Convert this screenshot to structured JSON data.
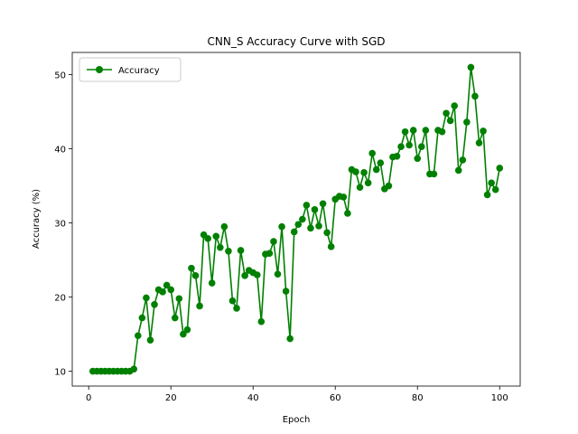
{
  "chart_data": {
    "type": "line",
    "title": "CNN_S Accuracy Curve with SGD",
    "xlabel": "Epoch",
    "ylabel": "Accuracy (%)",
    "xlim": [
      -4,
      105
    ],
    "ylim": [
      8.0,
      53.0
    ],
    "xticks": [
      0,
      20,
      40,
      60,
      80,
      100
    ],
    "yticks": [
      10,
      20,
      30,
      40,
      50
    ],
    "grid": false,
    "legend_position": "upper-left",
    "color": "#008000",
    "marker": "circle",
    "series": [
      {
        "name": "Accuracy",
        "x": [
          1,
          2,
          3,
          4,
          5,
          6,
          7,
          8,
          9,
          10,
          11,
          12,
          13,
          14,
          15,
          16,
          17,
          18,
          19,
          20,
          21,
          22,
          23,
          24,
          25,
          26,
          27,
          28,
          29,
          30,
          31,
          32,
          33,
          34,
          35,
          36,
          37,
          38,
          39,
          40,
          41,
          42,
          43,
          44,
          45,
          46,
          47,
          48,
          49,
          50,
          51,
          52,
          53,
          54,
          55,
          56,
          57,
          58,
          59,
          60,
          61,
          62,
          63,
          64,
          65,
          66,
          67,
          68,
          69,
          70,
          71,
          72,
          73,
          74,
          75,
          76,
          77,
          78,
          79,
          80,
          81,
          82,
          83,
          84,
          85,
          86,
          87,
          88,
          89,
          90,
          91,
          92,
          93,
          94,
          95,
          96,
          97,
          98,
          99,
          100
        ],
        "values": [
          10.0,
          10.0,
          10.0,
          10.0,
          10.0,
          10.0,
          10.0,
          10.0,
          10.0,
          10.0,
          10.3,
          14.8,
          17.2,
          19.9,
          14.2,
          19.0,
          21.0,
          20.7,
          21.6,
          21.0,
          17.2,
          19.8,
          15.0,
          15.6,
          23.9,
          22.9,
          18.8,
          28.4,
          27.9,
          21.9,
          28.2,
          26.7,
          29.5,
          26.2,
          19.5,
          18.5,
          26.3,
          22.9,
          23.6,
          23.3,
          23.0,
          16.7,
          25.8,
          25.9,
          27.5,
          23.1,
          29.5,
          20.8,
          14.4,
          28.8,
          29.8,
          30.5,
          32.4,
          29.3,
          31.8,
          29.6,
          32.6,
          28.7,
          26.8,
          33.2,
          33.6,
          33.5,
          31.3,
          37.2,
          36.9,
          34.8,
          36.8,
          35.4,
          39.4,
          37.2,
          38.1,
          34.6,
          35.0,
          38.9,
          39.0,
          40.3,
          42.3,
          40.5,
          42.5,
          38.7,
          40.3,
          42.5,
          36.6,
          36.6,
          42.5,
          42.3,
          44.8,
          43.8,
          45.8,
          37.1,
          38.5,
          43.6,
          51.0,
          47.1,
          40.8,
          42.4,
          33.8,
          35.4,
          34.5,
          37.4
        ]
      }
    ]
  }
}
